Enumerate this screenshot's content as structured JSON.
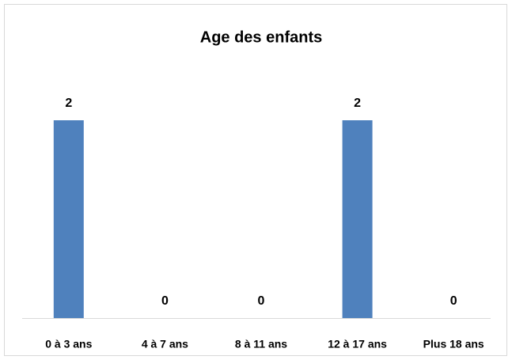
{
  "chart_data": {
    "type": "bar",
    "title": "Age des enfants",
    "categories": [
      "0 à 3 ans",
      "4 à 7 ans",
      "8 à 11 ans",
      "12 à 17 ans",
      "Plus 18 ans"
    ],
    "values": [
      2,
      0,
      0,
      2,
      0
    ],
    "color": "#4f81bd"
  }
}
